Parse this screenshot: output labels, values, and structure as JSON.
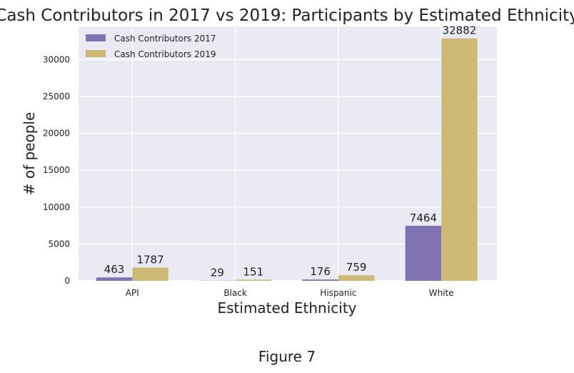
{
  "caption": "Figure 7",
  "chart_data": {
    "type": "bar",
    "title": "Cash Contributors in 2017 vs 2019: Participants by Estimated Ethnicity",
    "xlabel": "Estimated Ethnicity",
    "ylabel": "# of people",
    "categories": [
      "API",
      "Black",
      "Hispanic",
      "White"
    ],
    "series": [
      {
        "name": "Cash Contributors 2017",
        "values": [
          463,
          29,
          176,
          7464
        ],
        "color": "#8172b2"
      },
      {
        "name": "Cash Contributors 2019",
        "values": [
          1787,
          151,
          759,
          32882
        ],
        "color": "#ccb974"
      }
    ],
    "ylim": [
      0,
      34500
    ],
    "yticks": [
      0,
      5000,
      10000,
      15000,
      20000,
      25000,
      30000
    ],
    "grid": true,
    "legend": "top-left",
    "background": "#eaeaf2"
  }
}
